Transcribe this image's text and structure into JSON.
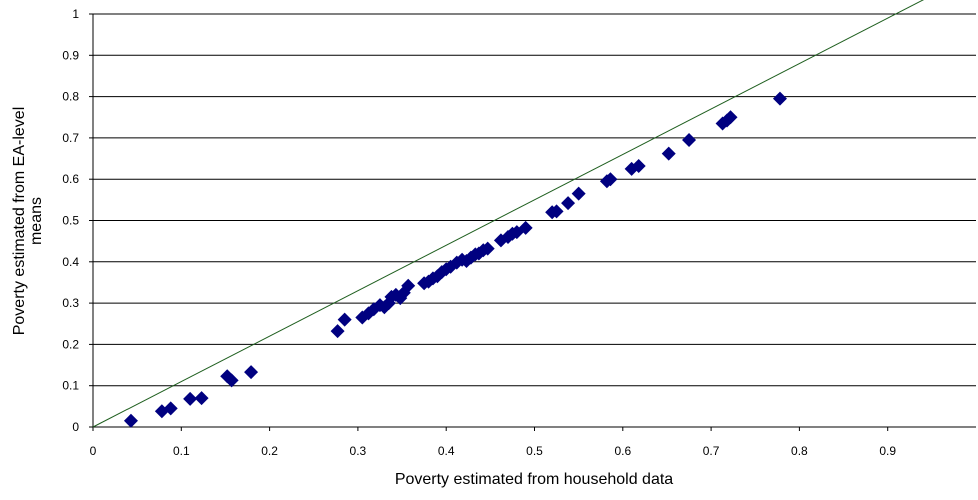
{
  "chart_data": {
    "type": "scatter",
    "title": "",
    "xlabel": "Poverty estimated from household data",
    "ylabel_lines": [
      "Poverty estimated from EA-level",
      "means"
    ],
    "xlim": [
      0,
      1
    ],
    "ylim": [
      0,
      1
    ],
    "x_ticks": [
      "0",
      "0.1",
      "0.2",
      "0.3",
      "0.4",
      "0.5",
      "0.6",
      "0.7",
      "0.8",
      "0.9"
    ],
    "y_ticks": [
      "0",
      "0.1",
      "0.2",
      "0.3",
      "0.4",
      "0.5",
      "0.6",
      "0.7",
      "0.8",
      "0.9",
      "1"
    ],
    "grid": "horizontal",
    "reference_line": {
      "from": [
        0,
        0
      ],
      "to": [
        1,
        1.1
      ],
      "color": "#1f5f1f"
    },
    "marker_color": "#000080",
    "marker_shape": "diamond",
    "points": [
      [
        0.043,
        0.015
      ],
      [
        0.078,
        0.038
      ],
      [
        0.088,
        0.045
      ],
      [
        0.11,
        0.068
      ],
      [
        0.123,
        0.07
      ],
      [
        0.152,
        0.123
      ],
      [
        0.157,
        0.113
      ],
      [
        0.179,
        0.133
      ],
      [
        0.277,
        0.232
      ],
      [
        0.285,
        0.26
      ],
      [
        0.305,
        0.265
      ],
      [
        0.312,
        0.275
      ],
      [
        0.318,
        0.285
      ],
      [
        0.325,
        0.295
      ],
      [
        0.33,
        0.29
      ],
      [
        0.335,
        0.3
      ],
      [
        0.338,
        0.315
      ],
      [
        0.343,
        0.32
      ],
      [
        0.348,
        0.312
      ],
      [
        0.352,
        0.325
      ],
      [
        0.357,
        0.342
      ],
      [
        0.375,
        0.348
      ],
      [
        0.38,
        0.352
      ],
      [
        0.385,
        0.36
      ],
      [
        0.39,
        0.365
      ],
      [
        0.395,
        0.375
      ],
      [
        0.4,
        0.382
      ],
      [
        0.405,
        0.388
      ],
      [
        0.412,
        0.398
      ],
      [
        0.418,
        0.405
      ],
      [
        0.423,
        0.402
      ],
      [
        0.428,
        0.41
      ],
      [
        0.433,
        0.418
      ],
      [
        0.437,
        0.42
      ],
      [
        0.442,
        0.428
      ],
      [
        0.447,
        0.432
      ],
      [
        0.462,
        0.452
      ],
      [
        0.47,
        0.46
      ],
      [
        0.475,
        0.468
      ],
      [
        0.48,
        0.472
      ],
      [
        0.49,
        0.482
      ],
      [
        0.52,
        0.52
      ],
      [
        0.525,
        0.522
      ],
      [
        0.538,
        0.542
      ],
      [
        0.55,
        0.565
      ],
      [
        0.582,
        0.595
      ],
      [
        0.586,
        0.6
      ],
      [
        0.61,
        0.625
      ],
      [
        0.618,
        0.632
      ],
      [
        0.652,
        0.662
      ],
      [
        0.675,
        0.695
      ],
      [
        0.713,
        0.735
      ],
      [
        0.718,
        0.742
      ],
      [
        0.722,
        0.75
      ],
      [
        0.778,
        0.795
      ]
    ]
  }
}
